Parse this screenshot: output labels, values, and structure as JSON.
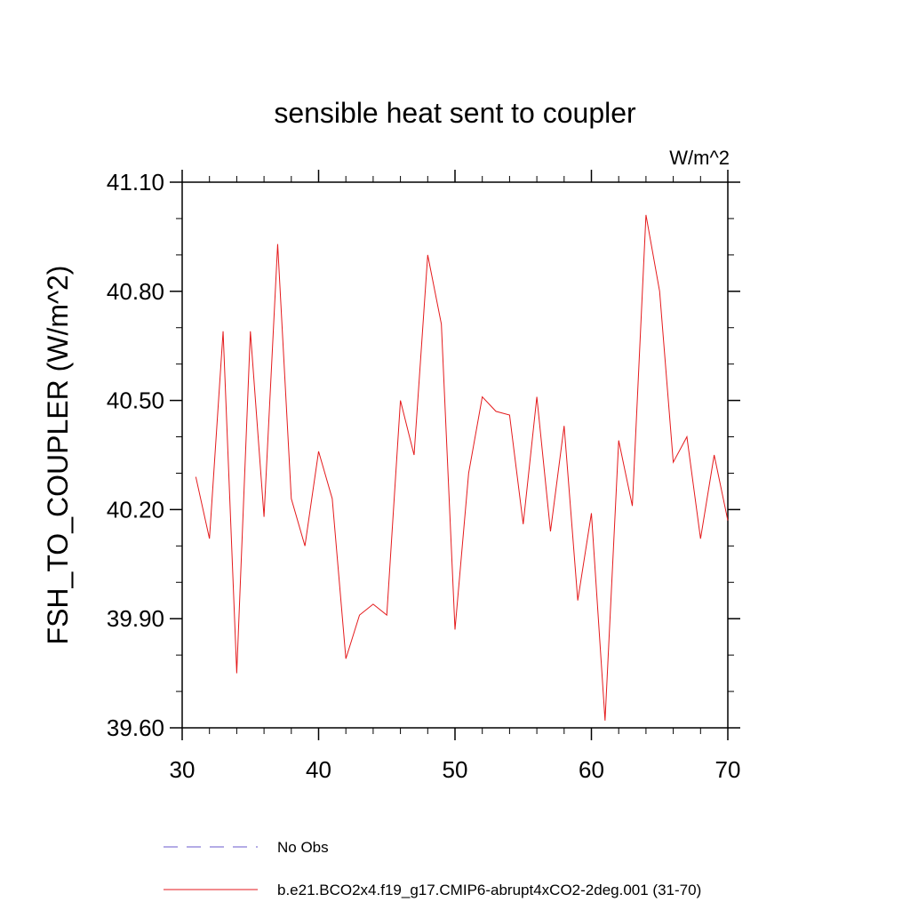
{
  "chart_data": {
    "type": "line",
    "title": "sensible heat sent to coupler",
    "units": "W/m^2",
    "xlabel": "",
    "ylabel": "FSH_TO_COUPLER  (W/m^2)",
    "xlim": [
      30,
      70
    ],
    "ylim": [
      39.6,
      41.1
    ],
    "x_ticks": [
      30,
      40,
      50,
      60,
      70
    ],
    "x_tick_labels": [
      "30",
      "40",
      "50",
      "60",
      "70"
    ],
    "y_ticks": [
      39.6,
      39.9,
      40.2,
      40.5,
      40.8,
      41.1
    ],
    "y_tick_labels": [
      "39.60",
      "39.90",
      "40.20",
      "40.50",
      "40.80",
      "41.10"
    ],
    "grid": false,
    "legend_position": "bottom",
    "legend": [
      {
        "label": "No Obs",
        "color": "#6a5acd",
        "style": "dashed"
      },
      {
        "label": "b.e21.BCO2x4.f19_g17.CMIP6-abrupt4xCO2-2deg.001 (31-70)",
        "color": "#e41a1c",
        "style": "solid"
      }
    ],
    "series": [
      {
        "color": "#e41a1c",
        "x": [
          31,
          32,
          33,
          34,
          35,
          36,
          37,
          38,
          39,
          40,
          41,
          42,
          43,
          44,
          45,
          46,
          47,
          48,
          49,
          50,
          51,
          52,
          53,
          54,
          55,
          56,
          57,
          58,
          59,
          60,
          61,
          62,
          63,
          64,
          65,
          66,
          67,
          68,
          69,
          70
        ],
        "values": [
          40.29,
          40.12,
          40.69,
          39.75,
          40.69,
          40.18,
          40.93,
          40.23,
          40.1,
          40.36,
          40.23,
          39.79,
          39.91,
          39.94,
          39.91,
          40.5,
          40.35,
          40.9,
          40.71,
          39.87,
          40.3,
          40.51,
          40.47,
          40.46,
          40.16,
          40.51,
          40.14,
          40.43,
          39.95,
          40.19,
          39.62,
          40.39,
          40.21,
          41.01,
          40.8,
          40.33,
          40.4,
          40.12,
          40.35,
          40.17
        ]
      }
    ]
  }
}
